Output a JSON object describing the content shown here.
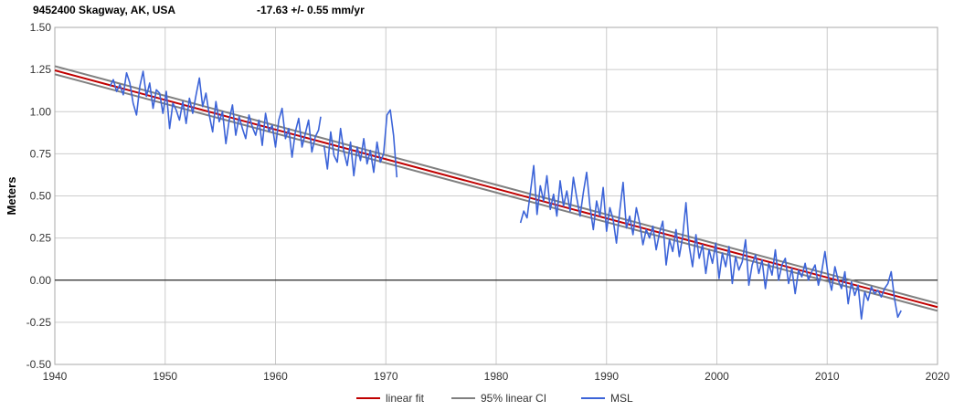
{
  "header": {
    "station": "9452400 Skagway, AK, USA",
    "trend": "-17.63 +/- 0.55 mm/yr"
  },
  "chart_data": {
    "type": "line",
    "ylabel": "Meters",
    "xlabel": "",
    "xlim": [
      1940,
      2020
    ],
    "ylim": [
      -0.5,
      1.5
    ],
    "x_ticks": [
      "1940",
      "1950",
      "1960",
      "1970",
      "1980",
      "1990",
      "2000",
      "2010",
      "2020"
    ],
    "y_ticks": [
      "1.50",
      "1.25",
      "1.00",
      "0.75",
      "0.50",
      "0.25",
      "0.00",
      "-0.25",
      "-0.50"
    ],
    "grid": true,
    "legend_position": "bottom",
    "colors": {
      "linear_fit": "#c00000",
      "ci": "#808080",
      "msl": "#3c64d8",
      "zero_line": "#000000",
      "grid": "#cccccc"
    },
    "series": [
      {
        "name": "linear fit",
        "x": [
          1940,
          2020
        ],
        "y": [
          1.245,
          -0.16
        ]
      },
      {
        "name": "95% linear CI",
        "x": [
          1940,
          2020
        ],
        "y": [
          1.27,
          -0.138
        ],
        "y_lower": [
          1.222,
          -0.182
        ]
      },
      {
        "name": "MSL",
        "segments": [
          {
            "x": [
              1945.0,
              1945.3,
              1945.6,
              1945.9,
              1946.2,
              1946.5,
              1946.8,
              1947.1,
              1947.4,
              1947.7,
              1948.0,
              1948.3,
              1948.6,
              1948.9,
              1949.2,
              1949.5,
              1949.8,
              1950.1,
              1950.4,
              1950.7,
              1951.0,
              1951.3,
              1951.6,
              1951.9,
              1952.2,
              1952.5,
              1952.8,
              1953.1,
              1953.4,
              1953.7,
              1954.0,
              1954.3,
              1954.6,
              1954.9,
              1955.2,
              1955.5,
              1955.8,
              1956.1,
              1956.4,
              1956.7,
              1957.0,
              1957.3,
              1957.6,
              1957.9,
              1958.2,
              1958.5,
              1958.8,
              1959.1,
              1959.4,
              1959.7,
              1960.0,
              1960.3,
              1960.6,
              1960.9,
              1961.2,
              1961.5,
              1961.8,
              1962.1,
              1962.4,
              1962.7,
              1963.0,
              1963.3,
              1963.6,
              1963.9,
              1964.1
            ],
            "y": [
              1.15,
              1.19,
              1.12,
              1.16,
              1.1,
              1.23,
              1.17,
              1.05,
              0.98,
              1.15,
              1.24,
              1.09,
              1.17,
              1.02,
              1.13,
              1.11,
              0.99,
              1.12,
              0.9,
              1.05,
              1.01,
              0.95,
              1.06,
              0.93,
              1.08,
              0.99,
              1.1,
              1.2,
              1.03,
              1.11,
              0.98,
              0.88,
              1.06,
              0.94,
              1.0,
              0.81,
              0.95,
              1.04,
              0.86,
              0.97,
              0.9,
              0.84,
              0.98,
              0.91,
              0.86,
              0.95,
              0.8,
              0.99,
              0.88,
              0.92,
              0.79,
              0.95,
              1.02,
              0.84,
              0.9,
              0.73,
              0.88,
              0.96,
              0.79,
              0.87,
              0.95,
              0.76,
              0.85,
              0.89,
              0.97
            ]
          },
          {
            "x": [
              1964.4,
              1964.7,
              1965.0,
              1965.3,
              1965.6,
              1965.9,
              1966.2,
              1966.5,
              1966.8,
              1967.1,
              1967.4,
              1967.7,
              1968.0,
              1968.3,
              1968.6,
              1968.9,
              1969.2,
              1969.5,
              1969.8,
              1970.1,
              1970.4,
              1970.7,
              1971.0
            ],
            "y": [
              0.8,
              0.66,
              0.88,
              0.74,
              0.7,
              0.9,
              0.76,
              0.68,
              0.82,
              0.62,
              0.79,
              0.71,
              0.84,
              0.69,
              0.77,
              0.64,
              0.82,
              0.7,
              0.75,
              0.98,
              1.01,
              0.86,
              0.61
            ]
          },
          {
            "x": [
              1982.2,
              1982.5,
              1982.8,
              1983.1,
              1983.4,
              1983.7,
              1984.0,
              1984.3,
              1984.6,
              1984.9,
              1985.2,
              1985.5,
              1985.8,
              1986.1,
              1986.4,
              1986.7,
              1987.0,
              1987.3,
              1987.6,
              1987.9,
              1988.2,
              1988.5,
              1988.8,
              1989.1,
              1989.4,
              1989.7,
              1990.0,
              1990.3,
              1990.6,
              1990.9,
              1991.2,
              1991.5,
              1991.8,
              1992.1,
              1992.4,
              1992.7,
              1993.0,
              1993.3,
              1993.6,
              1993.9,
              1994.2,
              1994.5,
              1994.8,
              1995.1,
              1995.4,
              1995.7,
              1996.0,
              1996.3,
              1996.6,
              1996.9,
              1997.2,
              1997.5,
              1997.8,
              1998.1,
              1998.4,
              1998.7,
              1999.0,
              1999.3,
              1999.6,
              1999.9,
              2000.2,
              2000.5,
              2000.8,
              2001.1,
              2001.4,
              2001.7,
              2002.0,
              2002.3,
              2002.6,
              2002.9,
              2003.2,
              2003.5,
              2003.8,
              2004.1,
              2004.4,
              2004.7,
              2005.0,
              2005.3,
              2005.6,
              2005.9,
              2006.2,
              2006.5,
              2006.8,
              2007.1,
              2007.4,
              2007.7,
              2008.0,
              2008.3,
              2008.6,
              2008.9,
              2009.2,
              2009.5,
              2009.8,
              2010.1,
              2010.4,
              2010.7,
              2011.0,
              2011.3,
              2011.6,
              2011.9,
              2012.2,
              2012.5,
              2012.8,
              2013.1,
              2013.4,
              2013.7,
              2014.0,
              2014.3,
              2014.6,
              2014.9,
              2015.2,
              2015.5,
              2015.8,
              2016.1,
              2016.4,
              2016.7
            ],
            "y": [
              0.34,
              0.41,
              0.37,
              0.52,
              0.68,
              0.39,
              0.56,
              0.47,
              0.62,
              0.42,
              0.51,
              0.38,
              0.59,
              0.44,
              0.53,
              0.41,
              0.61,
              0.49,
              0.38,
              0.52,
              0.64,
              0.44,
              0.3,
              0.47,
              0.38,
              0.55,
              0.29,
              0.43,
              0.36,
              0.22,
              0.41,
              0.58,
              0.31,
              0.38,
              0.27,
              0.43,
              0.34,
              0.21,
              0.3,
              0.25,
              0.32,
              0.18,
              0.28,
              0.35,
              0.09,
              0.24,
              0.17,
              0.3,
              0.14,
              0.26,
              0.46,
              0.2,
              0.08,
              0.27,
              0.13,
              0.21,
              0.04,
              0.18,
              0.1,
              0.22,
              0.01,
              0.16,
              0.08,
              0.2,
              -0.02,
              0.14,
              0.06,
              0.11,
              0.24,
              -0.03,
              0.09,
              0.15,
              0.04,
              0.12,
              -0.05,
              0.1,
              0.03,
              0.18,
              0.0,
              0.09,
              0.13,
              -0.02,
              0.07,
              -0.08,
              0.06,
              0.02,
              0.1,
              0.0,
              0.05,
              0.09,
              -0.03,
              0.05,
              0.17,
              0.02,
              -0.06,
              0.08,
              0.0,
              -0.05,
              0.05,
              -0.14,
              -0.01,
              -0.09,
              -0.03,
              -0.23,
              -0.07,
              -0.12,
              -0.04,
              -0.08,
              -0.06,
              -0.1,
              -0.05,
              -0.02,
              0.05,
              -0.11,
              -0.22,
              -0.18
            ]
          }
        ]
      }
    ]
  }
}
